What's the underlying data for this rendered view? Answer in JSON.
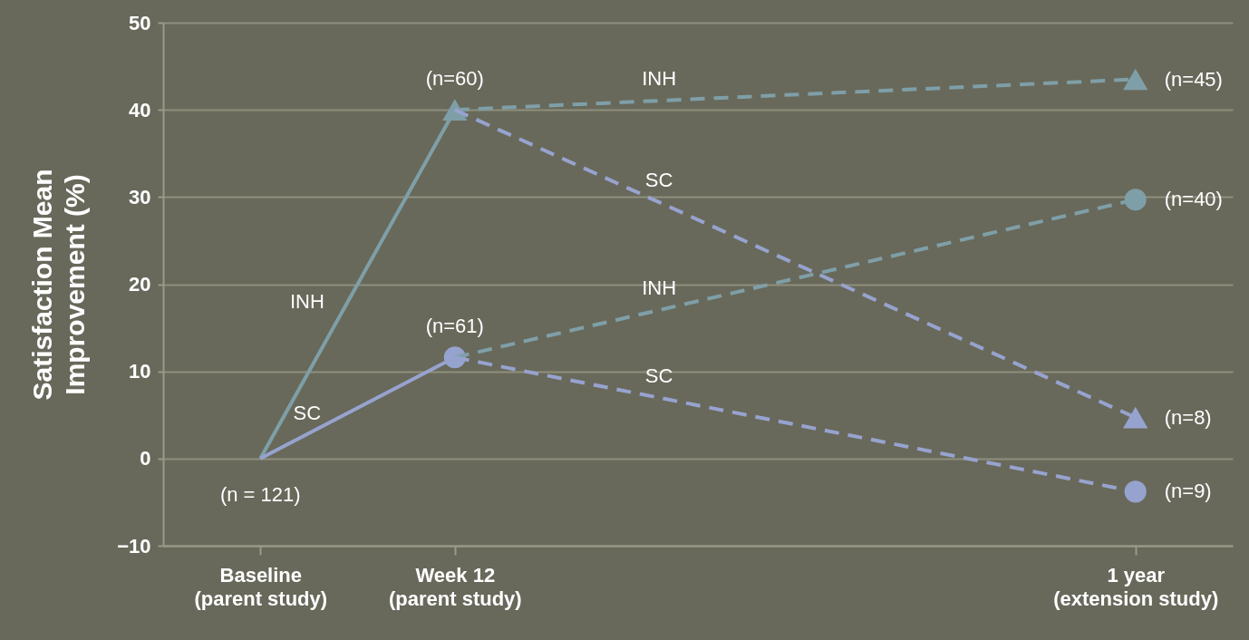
{
  "chart_data": {
    "type": "line",
    "ylabel": "Satisfaction Mean\nImprovement (%)",
    "categories": [
      "Baseline\n(parent study)",
      null,
      "Week 12\n(parent study)",
      null,
      null,
      null,
      null,
      null,
      null,
      "1 year\n(extension study)"
    ],
    "ylim": [
      -10,
      50
    ],
    "yticks": [
      -10,
      0,
      10,
      20,
      30,
      40,
      50
    ],
    "grid": "y",
    "series": [
      {
        "name": "INH",
        "color": "#7f9fa8",
        "line_style": "solid",
        "marker": "triangle",
        "x": [
          "Baseline\n(parent study)",
          "Week 12\n(parent study)"
        ],
        "values": [
          0,
          40
        ]
      },
      {
        "name": "SC",
        "color": "#97a3cf",
        "line_style": "solid",
        "marker": "circle",
        "x": [
          "Baseline\n(parent study)",
          "Week 12\n(parent study)"
        ],
        "values": [
          0,
          11.6
        ]
      },
      {
        "name": "INH",
        "color": "#7f9fa8",
        "line_style": "dashed",
        "marker": "triangle",
        "x": [
          "Week 12\n(parent study)",
          "1 year\n(extension study)"
        ],
        "values": [
          40,
          43.5
        ]
      },
      {
        "name": "SC",
        "color": "#97a3cf",
        "line_style": "dashed",
        "marker": "triangle",
        "x": [
          "Week 12\n(parent study)",
          "1 year\n(extension study)"
        ],
        "values": [
          40,
          4.7
        ]
      },
      {
        "name": "INH",
        "color": "#7f9fa8",
        "line_style": "dashed",
        "marker": "circle",
        "x": [
          "Week 12\n(parent study)",
          "1 year\n(extension study)"
        ],
        "values": [
          11.6,
          29.7
        ]
      },
      {
        "name": "SC",
        "color": "#97a3cf",
        "line_style": "dashed",
        "marker": "circle",
        "x": [
          "Week 12\n(parent study)",
          "1 year\n(extension study)"
        ],
        "values": [
          11.6,
          -3.8
        ]
      }
    ],
    "annotations": [
      {
        "text": "(n = 121)",
        "x": "Baseline\n(parent study)",
        "y": 0
      },
      {
        "text": "(n=60)",
        "x": "Week 12\n(parent study)",
        "y": 40
      },
      {
        "text": "(n=61)",
        "x": "Week 12\n(parent study)",
        "y": 11.6
      },
      {
        "text": "(n=45)",
        "x": "1 year\n(extension study)",
        "y": 43.5
      },
      {
        "text": "(n=40)",
        "x": "1 year\n(extension study)",
        "y": 29.7
      },
      {
        "text": "(n=8)",
        "x": "1 year\n(extension study)",
        "y": 4.7
      },
      {
        "text": "(n=9)",
        "x": "1 year\n(extension study)",
        "y": -3.8
      }
    ]
  }
}
